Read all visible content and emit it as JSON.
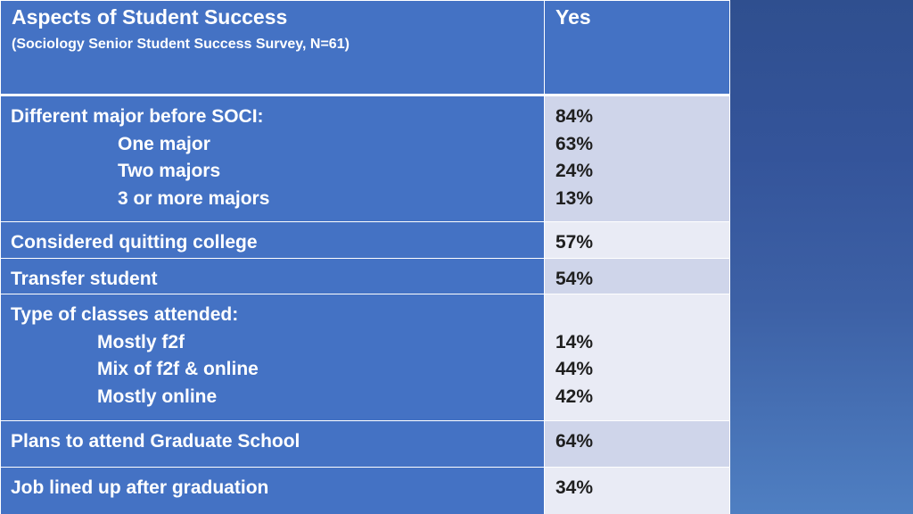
{
  "header": {
    "title": "Aspects of Student Success",
    "subtitle": "(Sociology Senior Student Success Survey, N=61)",
    "value_column": "Yes"
  },
  "rows": [
    {
      "label": "Different major before SOCI:",
      "value": "84%",
      "sub_items": [
        {
          "label": "One major",
          "value": "63%"
        },
        {
          "label": "Two majors",
          "value": "24%"
        },
        {
          "label": "3 or more majors",
          "value": "13%"
        }
      ]
    },
    {
      "label": "Considered quitting college",
      "value": "57%"
    },
    {
      "label": "Transfer student",
      "value": "54%"
    },
    {
      "label": "Type of classes attended:",
      "value": "",
      "sub_items": [
        {
          "label": "Mostly f2f",
          "value": "14%"
        },
        {
          "label": "Mix of f2f & online",
          "value": "44%"
        },
        {
          "label": "Mostly online",
          "value": "42%"
        }
      ]
    },
    {
      "label": "Plans to attend Graduate School",
      "value": "64%"
    },
    {
      "label": "Job lined up after graduation",
      "value": "34%"
    }
  ],
  "colors": {
    "header_bg": "#4472c4",
    "row_alt_a": "#cfd5ea",
    "row_alt_b": "#e9ebf5"
  }
}
